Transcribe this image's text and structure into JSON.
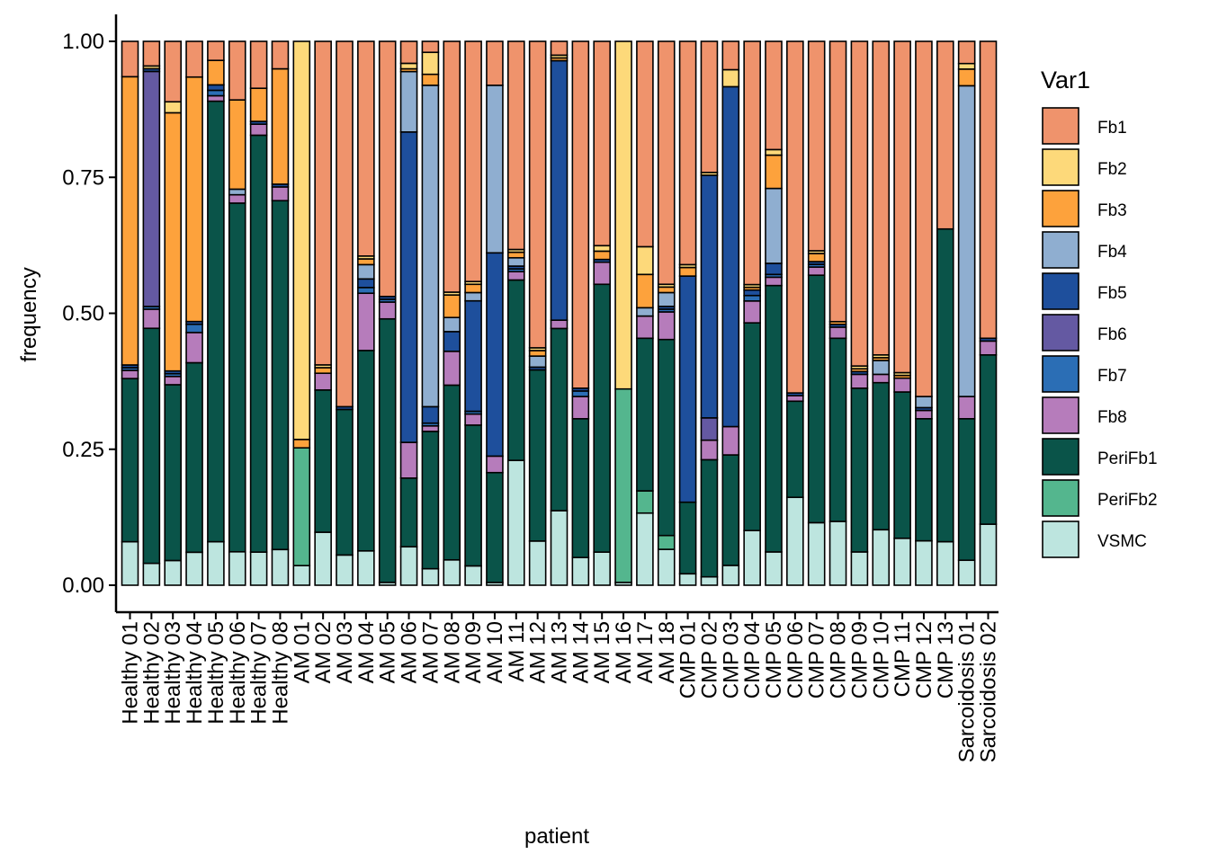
{
  "chart_data": {
    "type": "bar",
    "stacked": true,
    "xlabel": "patient",
    "ylabel": "frequency",
    "ylim": [
      0,
      1
    ],
    "yticks": [
      "0.00",
      "0.25",
      "0.50",
      "0.75",
      "1.00"
    ],
    "ytick_values": [
      0,
      0.25,
      0.5,
      0.75,
      1.0
    ],
    "legend_title": "Var1",
    "legend_position": "right",
    "grid": false,
    "categories": [
      "Healthy 01",
      "Healthy 02",
      "Healthy 03",
      "Healthy 04",
      "Healthy 05",
      "Healthy 06",
      "Healthy 07",
      "Healthy 08",
      "AM 01",
      "AM 02",
      "AM 03",
      "AM 04",
      "AM 05",
      "AM 06",
      "AM 07",
      "AM 08",
      "AM 09",
      "AM 10",
      "AM 11",
      "AM 12",
      "AM 13",
      "AM 14",
      "AM 15",
      "AM 16",
      "AM 17",
      "AM 18",
      "CMP 01",
      "CMP 02",
      "CMP 03",
      "CMP 04",
      "CMP 05",
      "CMP 06",
      "CMP 07",
      "CMP 08",
      "CMP 09",
      "CMP 10",
      "CMP 11",
      "CMP 12",
      "CMP 13",
      "Sarcoidosis 01",
      "Sarcoidosis 02"
    ],
    "series": [
      {
        "name": "Fb1",
        "color": "#EF936C",
        "values": [
          0.065,
          0.045,
          0.11,
          0.065,
          0.035,
          0.105,
          0.085,
          0.05,
          0.0,
          0.58,
          0.665,
          0.375,
          0.455,
          0.04,
          0.02,
          0.445,
          0.435,
          0.08,
          0.375,
          0.555,
          0.025,
          0.625,
          0.37,
          0.0,
          0.37,
          0.44,
          0.39,
          0.235,
          0.05,
          0.445,
          0.195,
          0.64,
          0.385,
          0.505,
          0.585,
          0.565,
          0.6,
          0.64,
          0.345,
          0.04,
          0.535
        ]
      },
      {
        "name": "Fb2",
        "color": "#FDD97A",
        "values": [
          0.0,
          0.005,
          0.02,
          0.0,
          0.0,
          0.0,
          0.0,
          0.0,
          0.71,
          0.005,
          0.0,
          0.005,
          0.0,
          0.01,
          0.04,
          0.005,
          0.005,
          0.0,
          0.005,
          0.005,
          0.005,
          0.0,
          0.01,
          0.62,
          0.05,
          0.005,
          0.005,
          0.005,
          0.03,
          0.005,
          0.01,
          0.0,
          0.005,
          0.0,
          0.005,
          0.005,
          0.005,
          0.0,
          0.0,
          0.01,
          0.0
        ]
      },
      {
        "name": "Fb3",
        "color": "#FDA23C",
        "values": [
          0.53,
          0.0,
          0.47,
          0.445,
          0.045,
          0.16,
          0.06,
          0.21,
          0.015,
          0.01,
          0.0,
          0.01,
          0.0,
          0.005,
          0.02,
          0.04,
          0.015,
          0.0,
          0.01,
          0.01,
          0.005,
          0.0,
          0.015,
          0.0,
          0.06,
          0.01,
          0.015,
          0.0,
          0.0,
          0.005,
          0.06,
          0.0,
          0.015,
          0.005,
          0.005,
          0.005,
          0.005,
          0.0,
          0.0,
          0.03,
          0.0
        ]
      },
      {
        "name": "Fb4",
        "color": "#8FAED0",
        "values": [
          0.0,
          0.0,
          0.0,
          0.0,
          0.0,
          0.01,
          0.0,
          0.0,
          0.0,
          0.0,
          0.0,
          0.025,
          0.0,
          0.11,
          0.585,
          0.025,
          0.015,
          0.305,
          0.015,
          0.02,
          0.0,
          0.0,
          0.0,
          0.0,
          0.015,
          0.025,
          0.0,
          0.0,
          0.0,
          0.0,
          0.135,
          0.0,
          0.0,
          0.0,
          0.0,
          0.025,
          0.0,
          0.02,
          0.0,
          0.56,
          0.0
        ]
      },
      {
        "name": "Fb5",
        "color": "#1E4F9C",
        "values": [
          0.005,
          0.005,
          0.005,
          0.005,
          0.01,
          0.0,
          0.005,
          0.005,
          0.0,
          0.0,
          0.005,
          0.015,
          0.005,
          0.565,
          0.03,
          0.035,
          0.2,
          0.37,
          0.005,
          0.005,
          0.47,
          0.005,
          0.005,
          0.0,
          0.0,
          0.005,
          0.395,
          0.435,
          0.6,
          0.01,
          0.02,
          0.005,
          0.005,
          0.005,
          0.005,
          0.0,
          0.0,
          0.005,
          0.0,
          0.0,
          0.005
        ]
      },
      {
        "name": "Fb6",
        "color": "#6459A2",
        "values": [
          0.0,
          0.43,
          0.0,
          0.0,
          0.0,
          0.0,
          0.0,
          0.0,
          0.0,
          0.0,
          0.0,
          0.0,
          0.0,
          0.0,
          0.0,
          0.0,
          0.0,
          0.0,
          0.0,
          0.0,
          0.0,
          0.0,
          0.0,
          0.0,
          0.0,
          0.0,
          0.0,
          0.04,
          0.0,
          0.0,
          0.0,
          0.0,
          0.0,
          0.0,
          0.0,
          0.0,
          0.0,
          0.0,
          0.0,
          0.0,
          0.0
        ]
      },
      {
        "name": "Fb7",
        "color": "#2B6EB5",
        "values": [
          0.005,
          0.005,
          0.005,
          0.015,
          0.01,
          0.0,
          0.0,
          0.0,
          0.0,
          0.0,
          0.0,
          0.01,
          0.005,
          0.0,
          0.005,
          0.0,
          0.005,
          0.0,
          0.005,
          0.0,
          0.0,
          0.01,
          0.0,
          0.0,
          0.0,
          0.005,
          0.0,
          0.0,
          0.0,
          0.01,
          0.005,
          0.0,
          0.005,
          0.0,
          0.0,
          0.0,
          0.0,
          0.0,
          0.0,
          0.0,
          0.0
        ]
      },
      {
        "name": "Fb8",
        "color": "#B67CBB",
        "values": [
          0.015,
          0.035,
          0.015,
          0.055,
          0.01,
          0.015,
          0.02,
          0.025,
          0.0,
          0.03,
          0.0,
          0.1,
          0.03,
          0.065,
          0.01,
          0.06,
          0.02,
          0.03,
          0.015,
          0.0,
          0.015,
          0.04,
          0.04,
          0.0,
          0.04,
          0.05,
          0.0,
          0.035,
          0.05,
          0.04,
          0.015,
          0.01,
          0.015,
          0.02,
          0.025,
          0.015,
          0.025,
          0.015,
          0.0,
          0.04,
          0.025
        ]
      },
      {
        "name": "PeriFb1",
        "color": "#0A5449",
        "values": [
          0.3,
          0.43,
          0.32,
          0.345,
          0.81,
          0.625,
          0.755,
          0.635,
          0.0,
          0.255,
          0.265,
          0.35,
          0.47,
          0.125,
          0.25,
          0.31,
          0.255,
          0.2,
          0.325,
          0.31,
          0.33,
          0.25,
          0.485,
          0.0,
          0.275,
          0.355,
          0.125,
          0.21,
          0.195,
          0.38,
          0.48,
          0.175,
          0.455,
          0.33,
          0.295,
          0.265,
          0.265,
          0.22,
          0.575,
          0.255,
          0.305
        ]
      },
      {
        "name": "PeriFb2",
        "color": "#54B68E",
        "values": [
          0.0,
          0.0,
          0.0,
          0.0,
          0.0,
          0.0,
          0.0,
          0.0,
          0.21,
          0.0,
          0.0,
          0.0,
          0.0,
          0.0,
          0.0,
          0.0,
          0.0,
          0.0,
          0.0,
          0.0,
          0.0,
          0.0,
          0.0,
          0.345,
          0.04,
          0.025,
          0.0,
          0.0,
          0.0,
          0.0,
          0.0,
          0.0,
          0.0,
          0.0,
          0.0,
          0.0,
          0.0,
          0.0,
          0.0,
          0.0,
          0.0
        ]
      },
      {
        "name": "VSMC",
        "color": "#BDE5DF",
        "values": [
          0.08,
          0.04,
          0.045,
          0.06,
          0.08,
          0.06,
          0.06,
          0.065,
          0.035,
          0.095,
          0.055,
          0.06,
          0.005,
          0.07,
          0.03,
          0.045,
          0.035,
          0.005,
          0.225,
          0.08,
          0.135,
          0.05,
          0.06,
          0.005,
          0.13,
          0.065,
          0.02,
          0.015,
          0.035,
          0.1,
          0.06,
          0.16,
          0.115,
          0.115,
          0.06,
          0.1,
          0.085,
          0.08,
          0.08,
          0.045,
          0.11
        ]
      }
    ]
  }
}
